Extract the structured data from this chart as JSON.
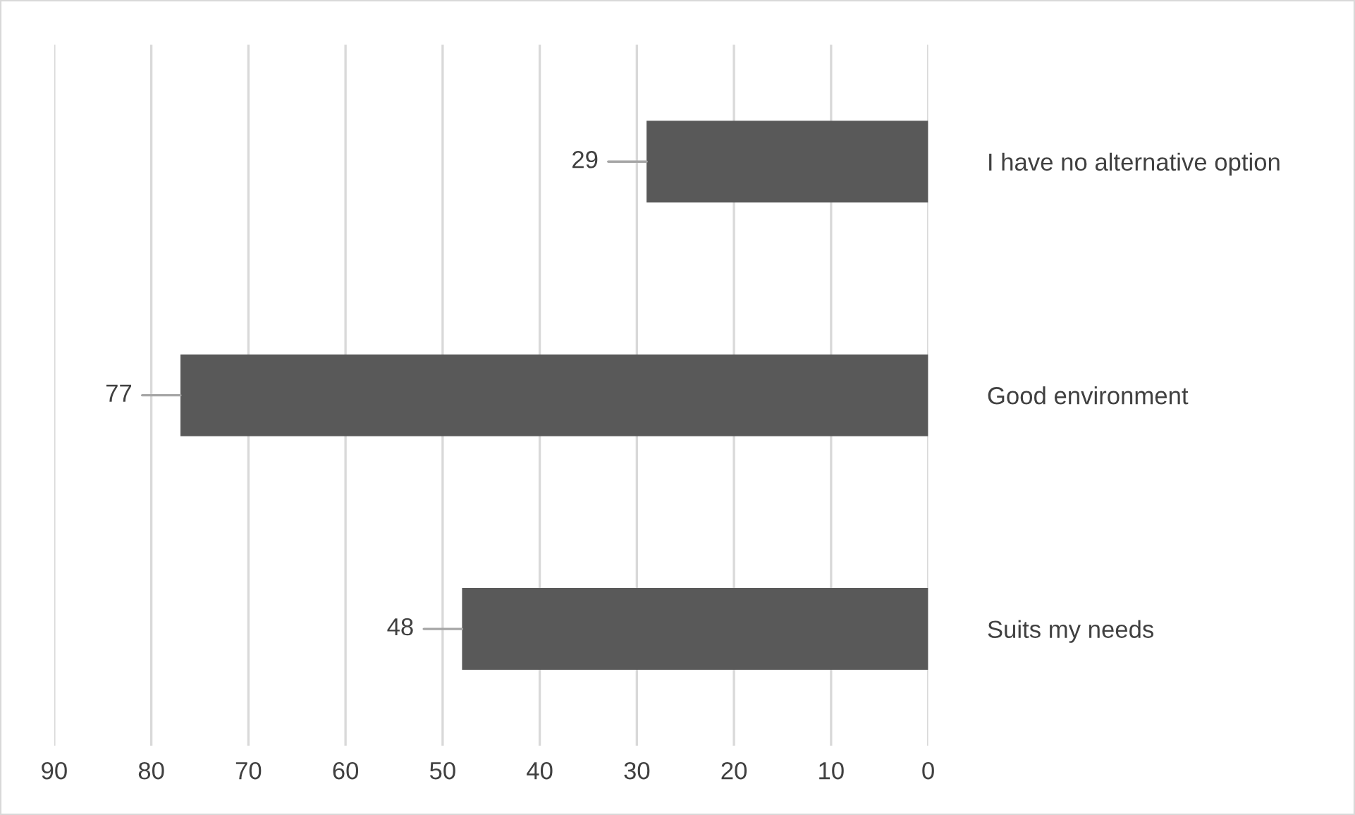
{
  "chart_data": {
    "type": "bar",
    "orientation": "horizontal",
    "categories": [
      "I have no alternative option",
      "Good environment",
      "Suits my needs"
    ],
    "values": [
      29,
      77,
      48
    ],
    "color": "#595959",
    "xlim": [
      90,
      0
    ],
    "xticks": [
      90,
      80,
      70,
      60,
      50,
      40,
      30,
      20,
      10,
      0
    ],
    "grid": "x",
    "data_labels": true,
    "legend": false
  }
}
